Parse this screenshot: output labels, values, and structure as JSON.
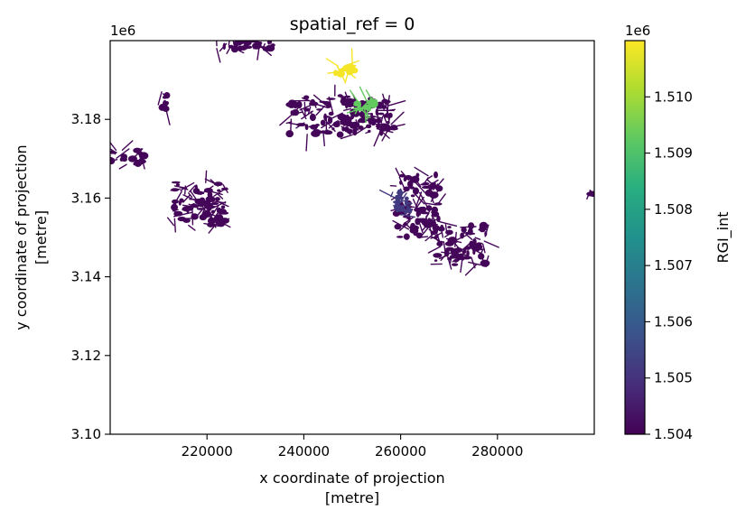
{
  "chart_data": {
    "type": "heatmap",
    "title": "spatial_ref = 0",
    "xlabel_line1": "x coordinate of projection",
    "xlabel_line2": "[metre]",
    "ylabel_line1": "y coordinate of projection",
    "ylabel_line2": "[metre]",
    "y_offset_label": "1e6",
    "xlim": [
      200000,
      300000
    ],
    "ylim": [
      3.1,
      3.2
    ],
    "x_ticks": [
      {
        "value": 220000,
        "label": "220000"
      },
      {
        "value": 240000,
        "label": "240000"
      },
      {
        "value": 260000,
        "label": "260000"
      },
      {
        "value": 280000,
        "label": "280000"
      }
    ],
    "y_ticks": [
      {
        "value": 3.1,
        "label": "3.10"
      },
      {
        "value": 3.12,
        "label": "3.12"
      },
      {
        "value": 3.14,
        "label": "3.14"
      },
      {
        "value": 3.16,
        "label": "3.16"
      },
      {
        "value": 3.18,
        "label": "3.18"
      }
    ],
    "grid": false,
    "colorbar": {
      "label": "RGI_int",
      "offset_label": "1e6",
      "colormap": "viridis",
      "range": [
        1.504,
        1.511
      ],
      "ticks": [
        {
          "value": 1.504,
          "label": "1.504"
        },
        {
          "value": 1.505,
          "label": "1.505"
        },
        {
          "value": 1.506,
          "label": "1.506"
        },
        {
          "value": 1.507,
          "label": "1.507"
        },
        {
          "value": 1.508,
          "label": "1.508"
        },
        {
          "value": 1.509,
          "label": "1.509"
        },
        {
          "value": 1.51,
          "label": "1.510"
        }
      ]
    },
    "regions": [
      {
        "value": 1.5041,
        "cx": 228000,
        "cy": 3.199,
        "spread_x": 6000,
        "spread_y": 0.0012,
        "n": 40
      },
      {
        "value": 1.5041,
        "cx": 203500,
        "cy": 3.1705,
        "spread_x": 3500,
        "spread_y": 0.002,
        "n": 24
      },
      {
        "value": 1.5041,
        "cx": 211000,
        "cy": 3.1845,
        "spread_x": 1200,
        "spread_y": 0.002,
        "n": 10
      },
      {
        "value": 1.5041,
        "cx": 218500,
        "cy": 3.1585,
        "spread_x": 5500,
        "spread_y": 0.0055,
        "n": 110
      },
      {
        "value": 1.5041,
        "cx": 243500,
        "cy": 3.181,
        "spread_x": 6500,
        "spread_y": 0.005,
        "n": 90
      },
      {
        "value": 1.5041,
        "cx": 254000,
        "cy": 3.181,
        "spread_x": 5000,
        "spread_y": 0.0045,
        "n": 90
      },
      {
        "value": 1.5041,
        "cx": 263500,
        "cy": 3.158,
        "spread_x": 4500,
        "spread_y": 0.008,
        "n": 120
      },
      {
        "value": 1.5041,
        "cx": 272500,
        "cy": 3.148,
        "spread_x": 5500,
        "spread_y": 0.005,
        "n": 100
      },
      {
        "value": 1.5041,
        "cx": 299500,
        "cy": 3.1615,
        "spread_x": 400,
        "spread_y": 0.0005,
        "n": 4
      },
      {
        "value": 1.5052,
        "cx": 260200,
        "cy": 3.1585,
        "spread_x": 2000,
        "spread_y": 0.0035,
        "n": 28
      },
      {
        "value": 1.5093,
        "cx": 253000,
        "cy": 3.1837,
        "spread_x": 2200,
        "spread_y": 0.0012,
        "n": 26
      },
      {
        "value": 1.5109,
        "cx": 248500,
        "cy": 3.1925,
        "spread_x": 2000,
        "spread_y": 0.0012,
        "n": 24
      }
    ]
  }
}
